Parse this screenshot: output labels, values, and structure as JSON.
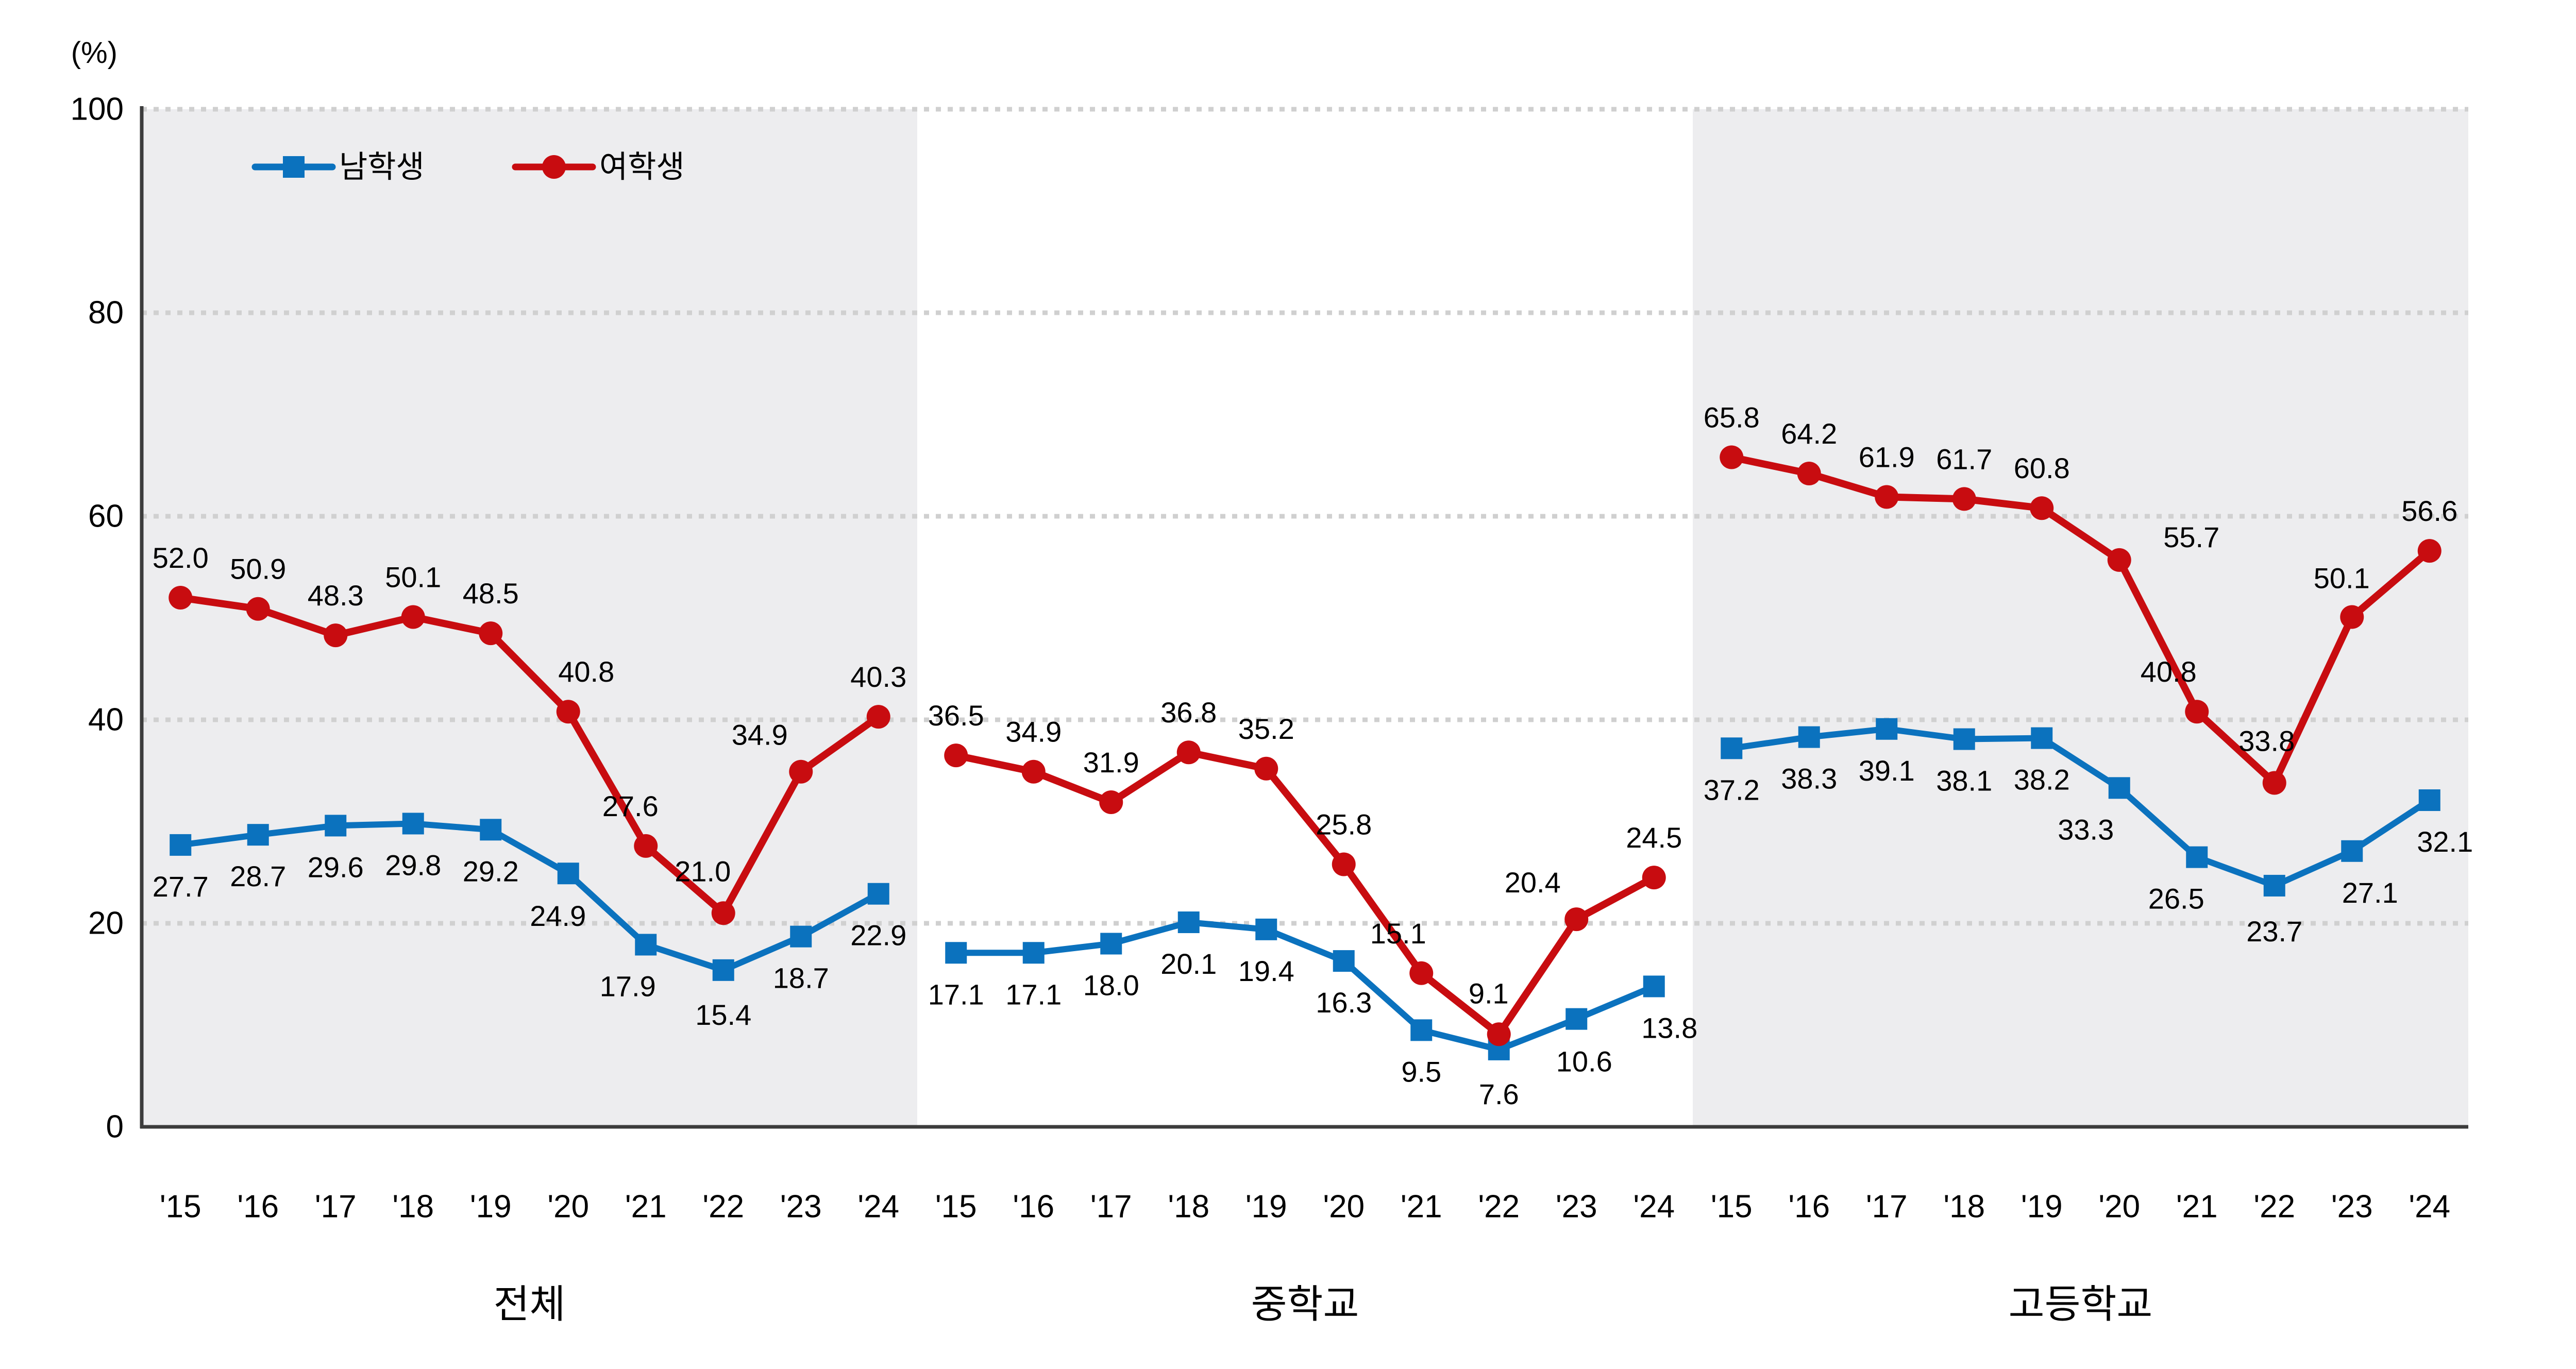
{
  "y_axis": {
    "unit": "(%)",
    "ticks": [
      0,
      20,
      40,
      60,
      80,
      100
    ],
    "min": 0,
    "max": 100,
    "grid": "dashed"
  },
  "legend": {
    "position": "top-left",
    "items": [
      {
        "label": "남학생",
        "color": "#0b72be",
        "marker": "square"
      },
      {
        "label": "여학생",
        "color": "#c80c10",
        "marker": "circle"
      }
    ]
  },
  "colors": {
    "male": "#0b72be",
    "female": "#c80c10",
    "panel_shade": "#ededef",
    "panel_white": "#ffffff",
    "gridline": "#d0d0d0",
    "axis": "#3c3c3c",
    "text": "#000000"
  },
  "chart_data": [
    {
      "type": "line",
      "title": "전체",
      "background": "#ededef",
      "categories": [
        "'15",
        "'16",
        "'17",
        "'18",
        "'19",
        "'20",
        "'21",
        "'22",
        "'23",
        "'24"
      ],
      "ylim": [
        0,
        100
      ],
      "series": [
        {
          "name": "남학생",
          "key": "male",
          "color": "#0b72be",
          "marker": "square",
          "values": [
            27.7,
            28.7,
            29.6,
            29.8,
            29.2,
            24.9,
            17.9,
            15.4,
            18.7,
            22.9
          ],
          "label_offsets": {
            "5": [
              -20,
              102
            ],
            "6": [
              -35,
              100
            ],
            "7": [
              0,
              106
            ]
          }
        },
        {
          "name": "여학생",
          "key": "female",
          "color": "#c80c10",
          "marker": "circle",
          "values": [
            52.0,
            50.9,
            48.3,
            50.1,
            48.5,
            40.8,
            27.6,
            21.0,
            34.9,
            40.3
          ],
          "label_offsets": {
            "5": [
              35,
              -58
            ],
            "6": [
              -30,
              -58
            ],
            "7": [
              -40,
              -62
            ],
            "8": [
              -80,
              -52
            ]
          }
        }
      ]
    },
    {
      "type": "line",
      "title": "중학교",
      "background": "#ffffff",
      "categories": [
        "'15",
        "'16",
        "'17",
        "'18",
        "'19",
        "'20",
        "'21",
        "'22",
        "'23",
        "'24"
      ],
      "ylim": [
        0,
        100
      ],
      "series": [
        {
          "name": "남학생",
          "key": "male",
          "color": "#0b72be",
          "marker": "square",
          "values": [
            17.1,
            17.1,
            18.0,
            20.1,
            19.4,
            16.3,
            9.5,
            7.6,
            10.6,
            13.8
          ],
          "label_offsets": {
            "7": [
              0,
              106
            ],
            "8": [
              15,
              102
            ],
            "9": [
              30,
              100
            ]
          }
        },
        {
          "name": "여학생",
          "key": "female",
          "color": "#c80c10",
          "marker": "circle",
          "values": [
            36.5,
            34.9,
            31.9,
            36.8,
            35.2,
            25.8,
            15.1,
            9.1,
            20.4,
            24.5
          ],
          "label_offsets": {
            "6": [
              -45,
              -58
            ],
            "7": [
              -20,
              -60
            ],
            "8": [
              -85,
              -52
            ]
          }
        }
      ]
    },
    {
      "type": "line",
      "title": "고등학교",
      "background": "#ededef",
      "categories": [
        "'15",
        "'16",
        "'17",
        "'18",
        "'19",
        "'20",
        "'21",
        "'22",
        "'23",
        "'24"
      ],
      "ylim": [
        0,
        100
      ],
      "series": [
        {
          "name": "남학생",
          "key": "male",
          "color": "#0b72be",
          "marker": "square",
          "values": [
            37.2,
            38.3,
            39.1,
            38.1,
            38.2,
            33.3,
            26.5,
            23.7,
            27.1,
            32.1
          ],
          "label_offsets": {
            "5": [
              -65,
              100
            ],
            "6": [
              -40,
              100
            ],
            "7": [
              0,
              108
            ],
            "8": [
              35,
              100
            ],
            "9": [
              30,
              100
            ]
          }
        },
        {
          "name": "여학생",
          "key": "female",
          "color": "#c80c10",
          "marker": "circle",
          "values": [
            65.8,
            64.2,
            61.9,
            61.7,
            60.8,
            55.7,
            40.8,
            33.8,
            50.1,
            56.6
          ],
          "label_offsets": {
            "5": [
              140,
              -25
            ],
            "6": [
              -55,
              -58
            ],
            "7": [
              -15,
              -62
            ],
            "8": [
              -20,
              -56
            ]
          }
        }
      ]
    }
  ]
}
